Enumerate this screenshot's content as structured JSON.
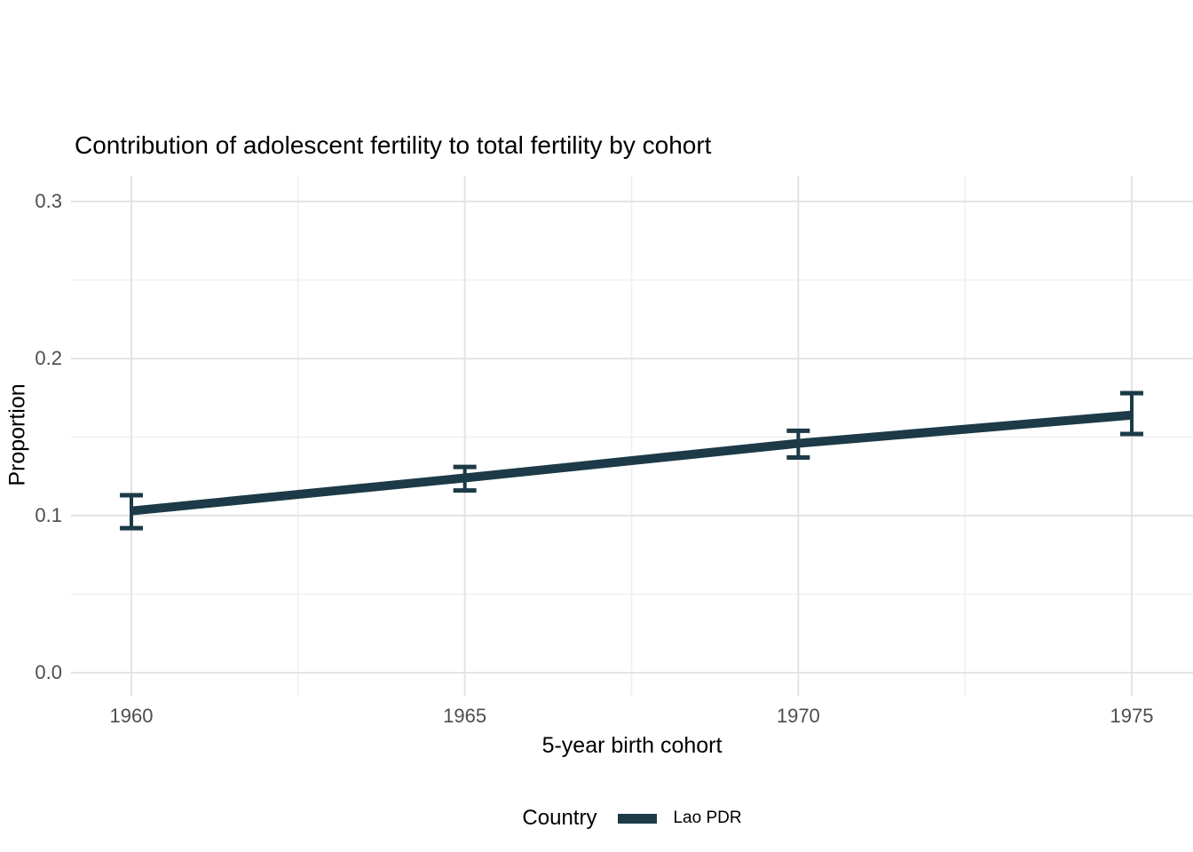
{
  "chart_data": {
    "type": "line",
    "title": "Contribution of adolescent fertility to total fertility by cohort",
    "xlabel": "5-year birth cohort",
    "ylabel": "Proportion",
    "x": [
      1960,
      1965,
      1970,
      1975
    ],
    "x_tick_labels": [
      "1960",
      "1965",
      "1970",
      "1975"
    ],
    "x_minor_ticks": [
      1962.5,
      1967.5,
      1972.5
    ],
    "y_ticks": [
      0.0,
      0.1,
      0.2,
      0.3
    ],
    "y_tick_labels": [
      "0.0",
      "0.1",
      "0.2",
      "0.3"
    ],
    "y_minor_ticks": [
      0.05,
      0.15,
      0.25
    ],
    "xlim": [
      1959.1,
      1975.9
    ],
    "ylim": [
      -0.015,
      0.315
    ],
    "grid": "major-and-minor",
    "legend": {
      "title": "Country",
      "position": "bottom"
    },
    "series": [
      {
        "name": "Lao PDR",
        "color": "#1c3a47",
        "values": [
          0.103,
          0.124,
          0.146,
          0.164
        ],
        "ci_low": [
          0.092,
          0.116,
          0.137,
          0.152
        ],
        "ci_high": [
          0.113,
          0.131,
          0.154,
          0.178
        ]
      }
    ]
  },
  "colors": {
    "background": "#ffffff",
    "grid_major": "#e4e4e4",
    "grid_minor": "#efefef",
    "tick_label": "#4d4d4d",
    "text": "#000000"
  }
}
